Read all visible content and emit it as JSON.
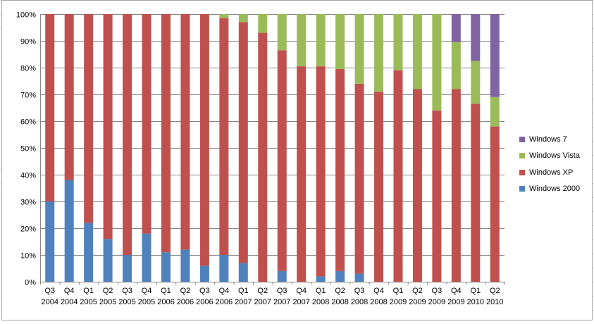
{
  "chart_data": {
    "type": "bar",
    "stacked": true,
    "percent_stacked": true,
    "title": "",
    "xlabel": "",
    "ylabel": "",
    "ylim": [
      0,
      100
    ],
    "y_ticks": [
      "0%",
      "10%",
      "20%",
      "30%",
      "40%",
      "50%",
      "60%",
      "70%",
      "80%",
      "90%",
      "100%"
    ],
    "grid": true,
    "legend_position": "right",
    "categories": [
      {
        "quarter": "Q3",
        "year": "2004"
      },
      {
        "quarter": "Q4",
        "year": "2004"
      },
      {
        "quarter": "Q1",
        "year": "2005"
      },
      {
        "quarter": "Q2",
        "year": "2005"
      },
      {
        "quarter": "Q3",
        "year": "2005"
      },
      {
        "quarter": "Q4",
        "year": "2005"
      },
      {
        "quarter": "Q1",
        "year": "2006"
      },
      {
        "quarter": "Q2",
        "year": "2006"
      },
      {
        "quarter": "Q3",
        "year": "2006"
      },
      {
        "quarter": "Q4",
        "year": "2006"
      },
      {
        "quarter": "Q1",
        "year": "2007"
      },
      {
        "quarter": "Q2",
        "year": "2007"
      },
      {
        "quarter": "Q3",
        "year": "2007"
      },
      {
        "quarter": "Q4",
        "year": "2007"
      },
      {
        "quarter": "Q1",
        "year": "2008"
      },
      {
        "quarter": "Q2",
        "year": "2008"
      },
      {
        "quarter": "Q3",
        "year": "2008"
      },
      {
        "quarter": "Q4",
        "year": "2008"
      },
      {
        "quarter": "Q1",
        "year": "2009"
      },
      {
        "quarter": "Q2",
        "year": "2009"
      },
      {
        "quarter": "Q3",
        "year": "2009"
      },
      {
        "quarter": "Q4",
        "year": "2009"
      },
      {
        "quarter": "Q1",
        "year": "2010"
      },
      {
        "quarter": "Q2",
        "year": "2010"
      }
    ],
    "series": [
      {
        "name": "Windows 2000",
        "color": "#4f81bd",
        "values": [
          30,
          38,
          22,
          16,
          10,
          18,
          11,
          12,
          6,
          10,
          7,
          0,
          4,
          0,
          2,
          4,
          3,
          0,
          0,
          0,
          0,
          0,
          0,
          0
        ]
      },
      {
        "name": "Windows XP",
        "color": "#c0504d",
        "values": [
          70,
          62,
          78,
          84,
          90,
          82,
          89,
          88,
          94,
          88.5,
          90,
          93,
          82.5,
          80.5,
          78.5,
          75.5,
          71,
          71,
          79,
          72,
          64,
          72,
          66.5,
          58
        ]
      },
      {
        "name": "Windows Vista",
        "color": "#9bbb59",
        "values": [
          0,
          0,
          0,
          0,
          0,
          0,
          0,
          0,
          0,
          1.5,
          3,
          7,
          13.5,
          19.5,
          19.5,
          20.5,
          26,
          29,
          21,
          28,
          36,
          17.5,
          16,
          11
        ]
      },
      {
        "name": "Windows 7",
        "color": "#8064a2",
        "values": [
          0,
          0,
          0,
          0,
          0,
          0,
          0,
          0,
          0,
          0,
          0,
          0,
          0,
          0,
          0,
          0,
          0,
          0,
          0,
          0,
          0,
          10.5,
          17.5,
          31
        ]
      }
    ],
    "legend_order": [
      "Windows 7",
      "Windows Vista",
      "Windows XP",
      "Windows 2000"
    ]
  }
}
